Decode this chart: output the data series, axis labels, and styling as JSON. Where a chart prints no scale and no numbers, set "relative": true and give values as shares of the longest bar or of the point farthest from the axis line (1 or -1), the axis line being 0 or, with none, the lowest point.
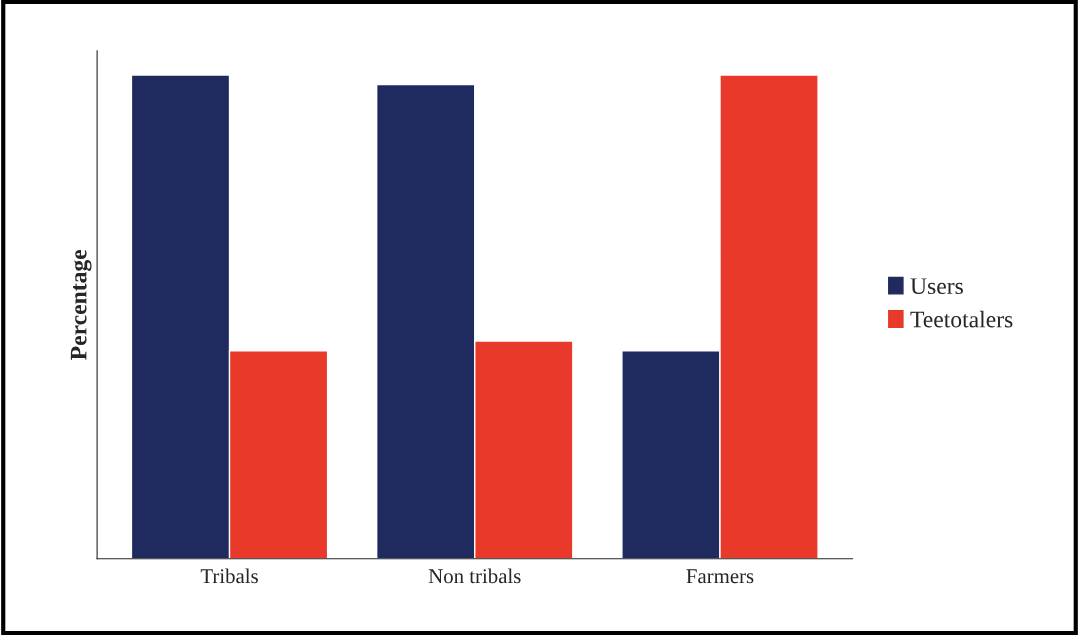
{
  "chart_data": {
    "type": "bar",
    "relative": true,
    "ylabel": "Percentage",
    "categories": [
      "Tribals",
      "Non tribals",
      "Farmers"
    ],
    "series": [
      {
        "name": "Users",
        "color": "#1f2a5e",
        "values": [
          1.0,
          0.98,
          0.43
        ]
      },
      {
        "name": "Teetotalers",
        "color": "#e8392a",
        "values": [
          0.43,
          0.45,
          1.0
        ]
      }
    ],
    "legend": "right",
    "grid": false
  }
}
